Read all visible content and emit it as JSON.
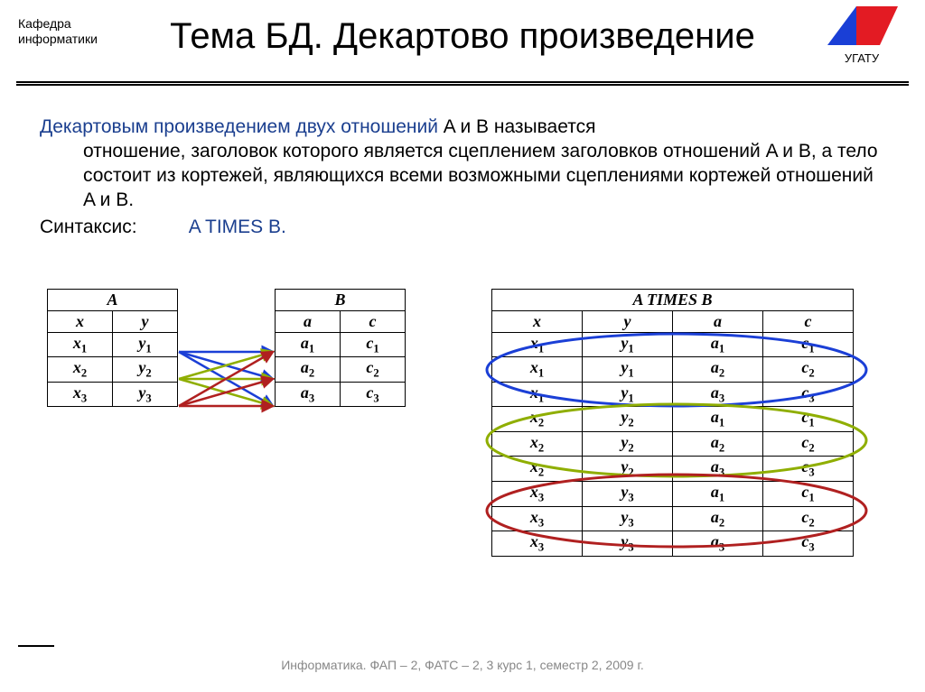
{
  "header": {
    "department": "Кафедра\nинформатики",
    "title": "Тема БД. Декартово произведение",
    "logo": {
      "text": "УГАТУ",
      "left_triangle_color": "#1a3fd6",
      "right_parallelogram_color": "#e31b23"
    }
  },
  "body": {
    "lead": "Декартовым произведением двух отношений",
    "rest1": " A и B называется",
    "rest2": "отношение, заголовок которого является сцеплением заголовков отношений A и B, а тело состоит из кортежей, являющихся всеми возможными сцеплениями кортежей отношений A и B.",
    "syntax_label": "Синтаксис:",
    "syntax_value": "A TIMES B."
  },
  "tables": {
    "A": {
      "title": "A",
      "columns": [
        "x",
        "y"
      ],
      "rows": [
        [
          "x₁",
          "y₁"
        ],
        [
          "x₂",
          "y₂"
        ],
        [
          "x₃",
          "y₃"
        ]
      ]
    },
    "B": {
      "title": "B",
      "columns": [
        "a",
        "c"
      ],
      "rows": [
        [
          "a₁",
          "c₁"
        ],
        [
          "a₂",
          "c₂"
        ],
        [
          "a₃",
          "c₃"
        ]
      ]
    },
    "AB": {
      "title": "A TIMES B",
      "columns": [
        "x",
        "y",
        "a",
        "c"
      ],
      "rows": [
        [
          "x₁",
          "y₁",
          "a₁",
          "c₁"
        ],
        [
          "x₁",
          "y₁",
          "a₂",
          "c₂"
        ],
        [
          "x₁",
          "y₁",
          "a₃",
          "c₃"
        ],
        [
          "x₂",
          "y₂",
          "a₁",
          "c₁"
        ],
        [
          "x₂",
          "y₂",
          "a₂",
          "c₂"
        ],
        [
          "x₂",
          "y₂",
          "a₃",
          "c₃"
        ],
        [
          "x₃",
          "y₃",
          "a₁",
          "c₁"
        ],
        [
          "x₃",
          "y₃",
          "a₂",
          "c₂"
        ],
        [
          "x₃",
          "y₃",
          "a₃",
          "c₃"
        ]
      ]
    }
  },
  "arrows": {
    "colors": {
      "set1": "#1b3fd6",
      "set2": "#8fae00",
      "set3": "#b02020"
    },
    "stroke_width": 2.5
  },
  "ellipses": {
    "group_colors": [
      "#1b3fd6",
      "#8fae00",
      "#b02020"
    ],
    "stroke_width": 3
  },
  "footer": {
    "text": "Информатика. ФАП – 2, ФАТС – 2, 3 курс 1, семестр 2, 2009 г."
  }
}
